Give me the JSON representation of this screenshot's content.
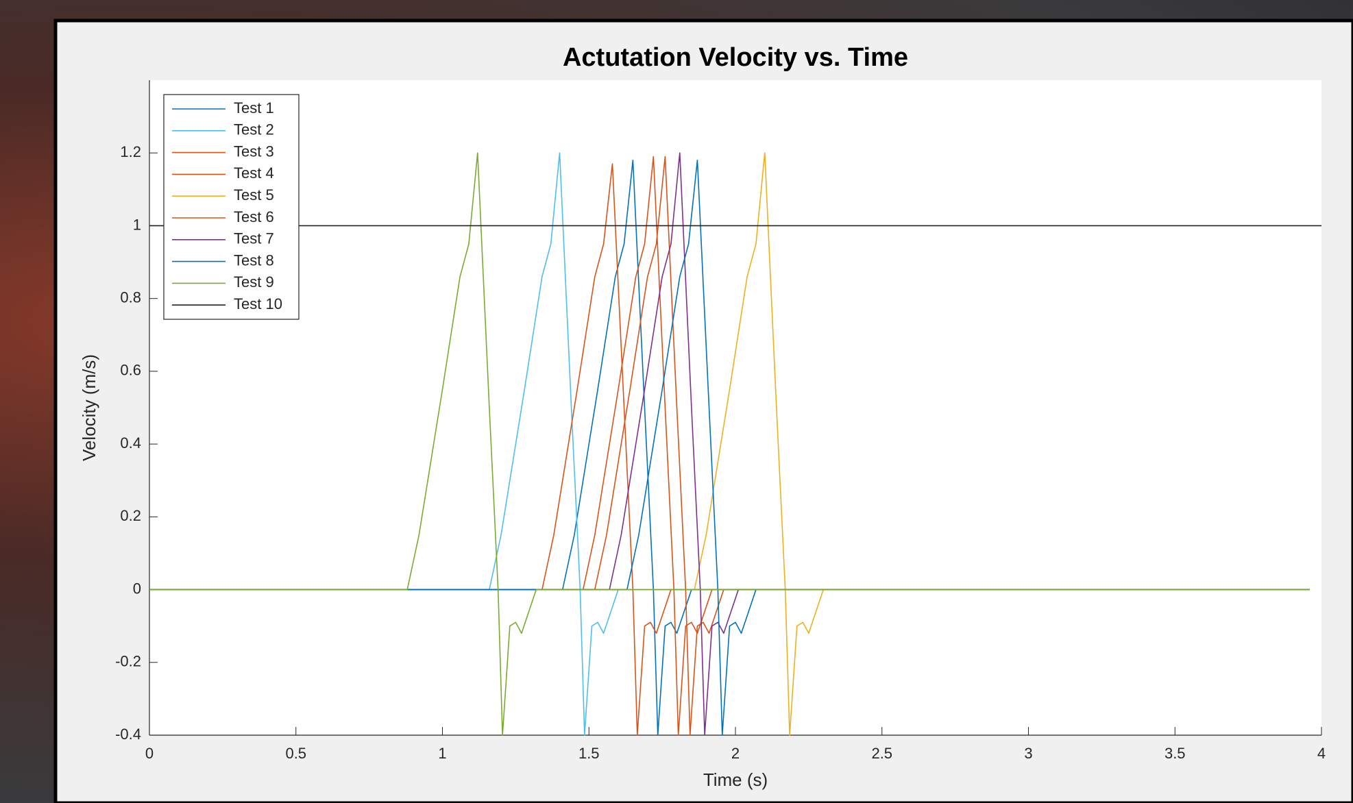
{
  "chart_data": {
    "type": "line",
    "title": "Actutation Velocity vs. Time",
    "x_label": "Time (s)",
    "y_label": "Velocity (m/s)",
    "xlim": [
      0,
      4
    ],
    "ylim": [
      -0.4,
      1.4
    ],
    "xticks": [
      0,
      0.5,
      1,
      1.5,
      2,
      2.5,
      3,
      3.5,
      4
    ],
    "yticks": [
      -0.4,
      -0.2,
      0,
      0.2,
      0.4,
      0.6,
      0.8,
      1,
      1.2
    ],
    "legend": "upper left",
    "series": [
      {
        "name": "Test 1",
        "color": "#0072BD",
        "x": [
          0,
          1.41,
          1.45,
          1.53,
          1.59,
          1.62,
          1.65,
          1.69,
          1.72,
          1.735,
          1.76,
          1.78,
          1.8,
          1.85,
          3.96
        ],
        "values": [
          0,
          0,
          0.15,
          0.55,
          0.86,
          0.95,
          1.18,
          0.5,
          0,
          -0.4,
          -0.1,
          -0.09,
          -0.12,
          0,
          0
        ]
      },
      {
        "name": "Test 2",
        "color": "#4DBEEE",
        "x": [
          0,
          1.16,
          1.2,
          1.28,
          1.34,
          1.37,
          1.4,
          1.44,
          1.47,
          1.485,
          1.51,
          1.53,
          1.55,
          1.6,
          3.96
        ],
        "values": [
          0,
          0,
          0.15,
          0.55,
          0.86,
          0.95,
          1.2,
          0.5,
          0,
          -0.4,
          -0.1,
          -0.09,
          -0.12,
          0,
          0
        ]
      },
      {
        "name": "Test 3",
        "color": "#D95319",
        "x": [
          0,
          1.34,
          1.38,
          1.46,
          1.52,
          1.55,
          1.58,
          1.62,
          1.65,
          1.665,
          1.69,
          1.71,
          1.73,
          1.78,
          3.96
        ],
        "values": [
          0,
          0,
          0.15,
          0.55,
          0.86,
          0.95,
          1.17,
          0.5,
          0,
          -0.4,
          -0.1,
          -0.09,
          -0.12,
          0,
          0
        ]
      },
      {
        "name": "Test 4",
        "color": "#D95319",
        "x": [
          0,
          1.48,
          1.52,
          1.6,
          1.66,
          1.69,
          1.72,
          1.76,
          1.79,
          1.805,
          1.83,
          1.85,
          1.87,
          1.92,
          3.96
        ],
        "values": [
          0,
          0,
          0.15,
          0.55,
          0.86,
          0.95,
          1.19,
          0.5,
          0,
          -0.4,
          -0.1,
          -0.09,
          -0.12,
          0,
          0
        ]
      },
      {
        "name": "Test 5",
        "color": "#EDB120",
        "x": [
          0,
          1.86,
          1.9,
          1.98,
          2.04,
          2.07,
          2.1,
          2.14,
          2.17,
          2.185,
          2.21,
          2.23,
          2.25,
          2.3,
          3.96
        ],
        "values": [
          0,
          0,
          0.15,
          0.55,
          0.86,
          0.95,
          1.2,
          0.5,
          0,
          -0.4,
          -0.1,
          -0.09,
          -0.12,
          0,
          0
        ]
      },
      {
        "name": "Test 6",
        "color": "#D95319",
        "x": [
          0,
          1.52,
          1.56,
          1.64,
          1.7,
          1.73,
          1.76,
          1.8,
          1.83,
          1.845,
          1.87,
          1.89,
          1.91,
          1.96,
          3.96
        ],
        "values": [
          0,
          0,
          0.15,
          0.55,
          0.86,
          0.95,
          1.19,
          0.5,
          0,
          -0.4,
          -0.1,
          -0.09,
          -0.12,
          0,
          0
        ]
      },
      {
        "name": "Test 7",
        "color": "#7E2F8E",
        "x": [
          0,
          1.57,
          1.61,
          1.69,
          1.75,
          1.78,
          1.81,
          1.85,
          1.88,
          1.895,
          1.92,
          1.94,
          1.96,
          2.01,
          3.96
        ],
        "values": [
          0,
          0,
          0.15,
          0.55,
          0.86,
          0.95,
          1.2,
          0.5,
          0,
          -0.4,
          -0.1,
          -0.09,
          -0.12,
          0,
          0
        ]
      },
      {
        "name": "Test 8",
        "color": "#0072BD",
        "x": [
          0,
          1.63,
          1.67,
          1.75,
          1.81,
          1.84,
          1.87,
          1.91,
          1.94,
          1.955,
          1.98,
          2.0,
          2.02,
          2.07,
          3.96
        ],
        "values": [
          0,
          0,
          0.15,
          0.55,
          0.86,
          0.95,
          1.18,
          0.5,
          0,
          -0.4,
          -0.1,
          -0.09,
          -0.12,
          0,
          0
        ]
      },
      {
        "name": "Test 9",
        "color": "#77AC30",
        "x": [
          0,
          0.88,
          0.92,
          1.0,
          1.06,
          1.09,
          1.12,
          1.16,
          1.19,
          1.205,
          1.23,
          1.25,
          1.27,
          1.32,
          3.96
        ],
        "values": [
          0,
          0,
          0.15,
          0.55,
          0.86,
          0.95,
          1.2,
          0.5,
          0,
          -0.4,
          -0.1,
          -0.09,
          -0.12,
          0,
          0
        ]
      },
      {
        "name": "Test 10",
        "color": "#222222",
        "x": [
          0,
          4
        ],
        "values": [
          1,
          1
        ]
      }
    ]
  }
}
